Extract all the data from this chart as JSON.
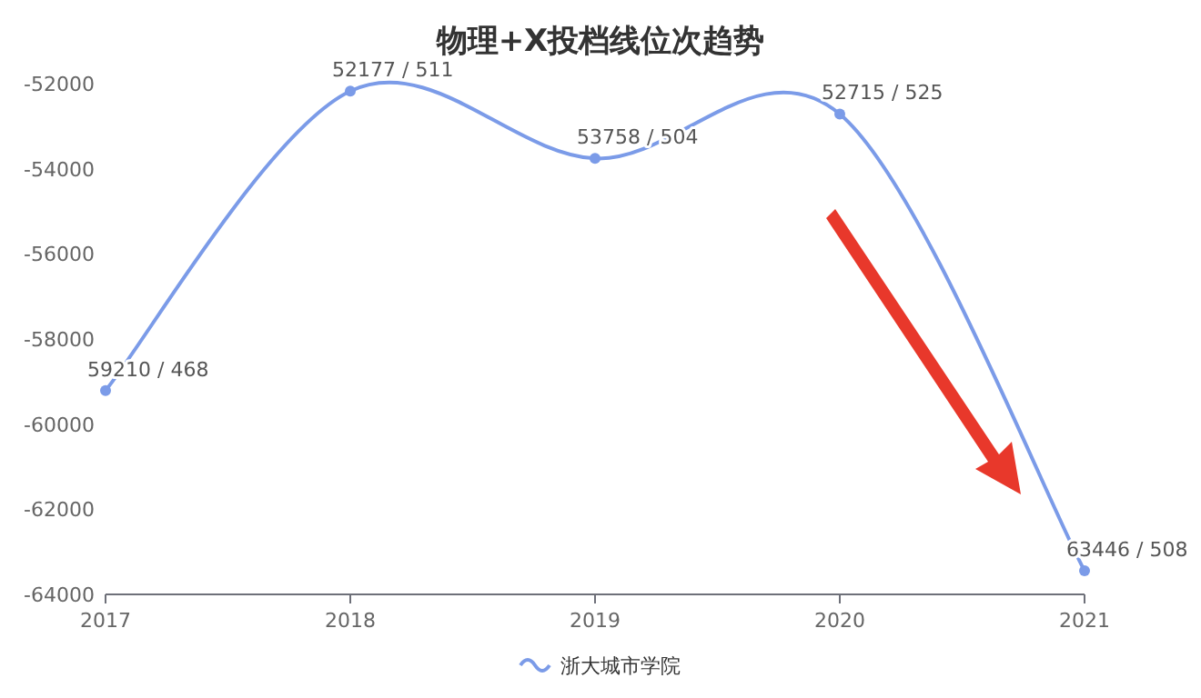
{
  "chart_data": {
    "type": "line",
    "title": "物理+X投档线位次趋势",
    "categories": [
      "2017",
      "2018",
      "2019",
      "2020",
      "2021"
    ],
    "series": [
      {
        "name": "浙大城市学院",
        "color": "#7b9be8",
        "values": [
          -59210,
          -52177,
          -53758,
          -52715,
          -63446
        ]
      }
    ],
    "annotations": [
      {
        "text": "59210 / 468",
        "x": "2017",
        "y": -59210
      },
      {
        "text": "52177 / 511",
        "x": "2018",
        "y": -52177
      },
      {
        "text": "53758 / 504",
        "x": "2019",
        "y": -53758
      },
      {
        "text": "52715 / 525",
        "x": "2020",
        "y": -52715
      },
      {
        "text": "63446 / 508",
        "x": "2021",
        "y": -63446
      }
    ],
    "ylim": [
      -64000,
      -52000
    ],
    "yticks": [
      -64000,
      -62000,
      -60000,
      -58000,
      -56000,
      -54000,
      -52000
    ],
    "legend": "bottom",
    "marker": "circle"
  }
}
